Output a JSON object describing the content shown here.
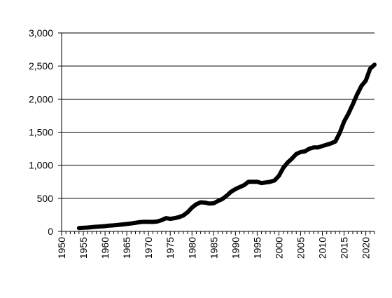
{
  "chart_data": {
    "type": "line",
    "title": "",
    "xlabel": "",
    "ylabel": "",
    "xlim": [
      1950,
      2022
    ],
    "ylim": [
      0,
      3000
    ],
    "x_ticks": [
      1950,
      1955,
      1960,
      1965,
      1970,
      1975,
      1980,
      1985,
      1990,
      1995,
      2000,
      2005,
      2010,
      2015,
      2020
    ],
    "y_ticks": [
      0,
      500,
      1000,
      1500,
      2000,
      2500,
      3000
    ],
    "y_tick_labels": [
      "0",
      "500",
      "1,000",
      "1,500",
      "2,000",
      "2,500",
      "3,000"
    ],
    "grid": "horizontal",
    "line_color": "#000000",
    "series": [
      {
        "x": [
          1954,
          1955,
          1956,
          1957,
          1958,
          1959,
          1960,
          1961,
          1962,
          1963,
          1964,
          1965,
          1966,
          1967,
          1968,
          1969,
          1970,
          1971,
          1972,
          1973,
          1974,
          1975,
          1976,
          1977,
          1978,
          1979,
          1980,
          1981,
          1982,
          1983,
          1984,
          1985,
          1986,
          1987,
          1988,
          1989,
          1990,
          1991,
          1992,
          1993,
          1994,
          1995,
          1996,
          1997,
          1998,
          1999,
          2000,
          2001,
          2002,
          2003,
          2004,
          2005,
          2006,
          2007,
          2008,
          2009,
          2010,
          2011,
          2012,
          2013,
          2014,
          2015,
          2016,
          2017,
          2018,
          2019,
          2020,
          2021,
          2022
        ],
        "values": [
          50,
          55,
          58,
          65,
          70,
          75,
          80,
          88,
          92,
          98,
          105,
          112,
          120,
          130,
          140,
          145,
          145,
          143,
          150,
          170,
          200,
          190,
          200,
          215,
          240,
          290,
          360,
          410,
          440,
          435,
          420,
          425,
          460,
          490,
          540,
          600,
          640,
          670,
          700,
          750,
          750,
          750,
          730,
          740,
          750,
          770,
          840,
          960,
          1040,
          1100,
          1170,
          1200,
          1210,
          1250,
          1270,
          1270,
          1290,
          1310,
          1330,
          1360,
          1490,
          1660,
          1780,
          1920,
          2070,
          2200,
          2280,
          2460,
          2520
        ]
      }
    ]
  }
}
